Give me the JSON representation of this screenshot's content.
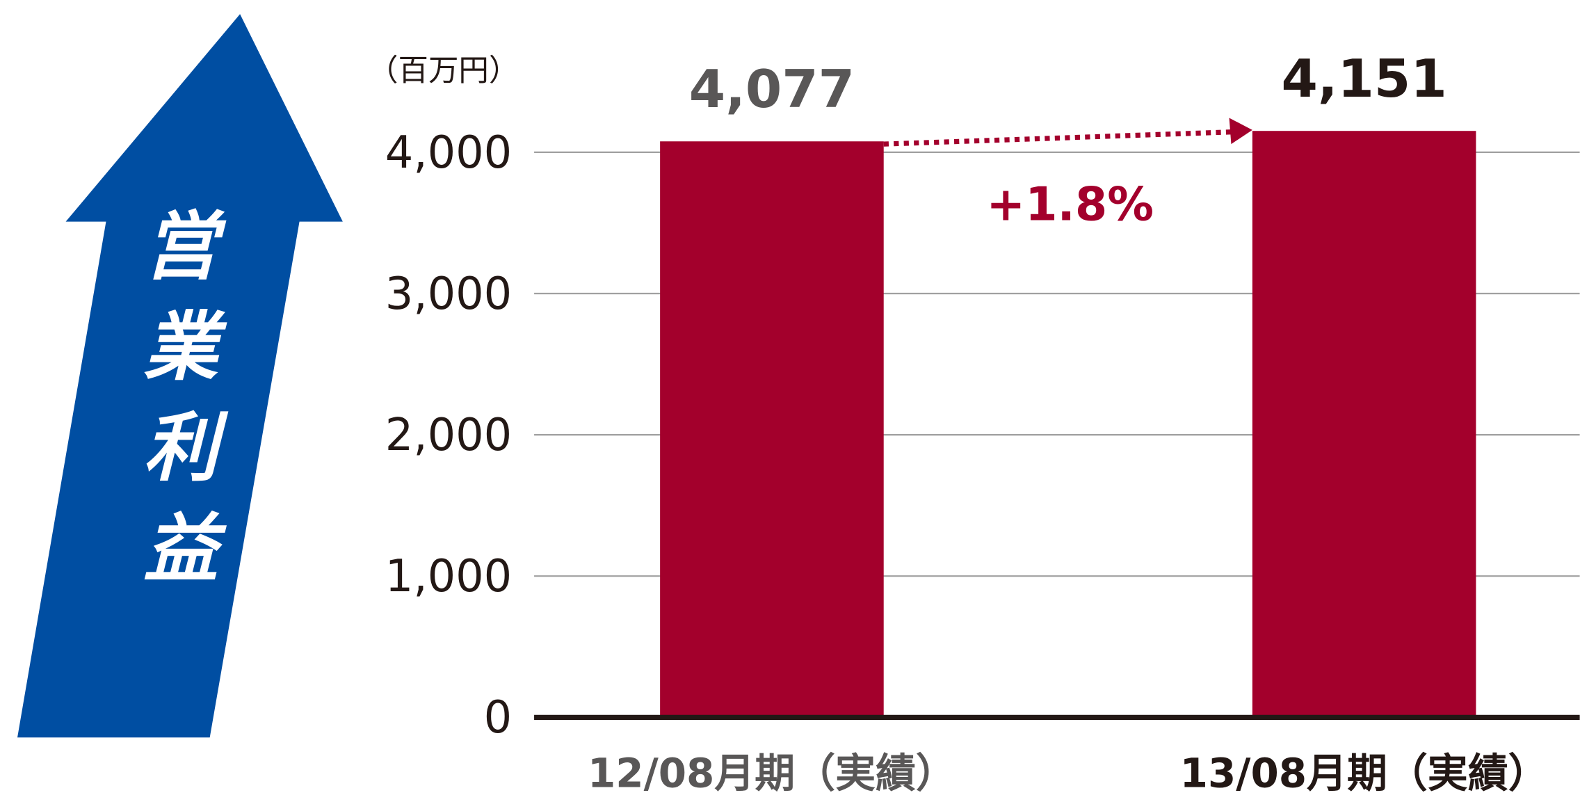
{
  "chart_data": {
    "type": "bar",
    "y_label": "営業利益",
    "unit_label": "（百万円）",
    "annotation": "+1.8%",
    "categories": [
      "12/08月期（実績）",
      "13/08月期（実績）"
    ],
    "values": [
      4077,
      4151
    ],
    "value_labels": [
      "4,077",
      "4,151"
    ],
    "color": "#a3002c",
    "ylim": [
      0,
      4500
    ],
    "yticks": [
      0,
      {
        "value": 1000,
        "label": "1,000"
      },
      {
        "value": 2000,
        "label": "2,000"
      },
      {
        "value": 3000,
        "label": "3,000"
      },
      {
        "value": 4000,
        "label": "4,000"
      }
    ],
    "grid": true
  }
}
